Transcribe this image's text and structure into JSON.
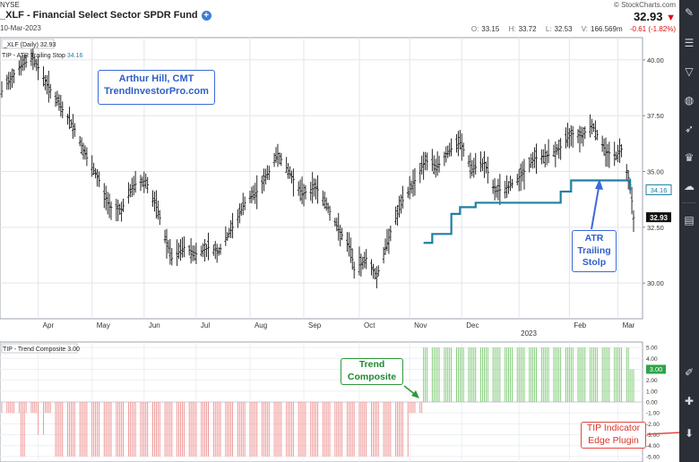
{
  "header": {
    "exchange": "NYSE",
    "title": "_XLF - Financial Select Sector SPDR Fund",
    "date": "10-Mar-2023",
    "copyright": "© StockCharts.com",
    "last_price": "32.93",
    "ohlc": {
      "open_label": "O:",
      "open": "33.15",
      "high_label": "H:",
      "high": "33.72",
      "low_label": "L:",
      "low": "32.53",
      "volume_label": "V:",
      "volume": "166.569m",
      "change": "-0.61 (-1.82%)"
    }
  },
  "price_panel": {
    "legend_symbol": "_XLF (Daily) 32.93",
    "legend_indicator": "TIP - ATR Trailing Stop",
    "legend_indicator_value": "34.16",
    "last_tag": "32.93",
    "stop_tag": "34.16"
  },
  "indicator_panel": {
    "legend": "TIP - Trend Composite 3.00",
    "last_tag": "3.00"
  },
  "callouts": {
    "author_line1": "Arthur Hill, CMT",
    "author_line2": "TrendInvestorPro.com",
    "atr_line1": "ATR",
    "atr_line2": "Trailing",
    "atr_line3": "Stolp",
    "trend_line1": "Trend",
    "trend_line2": "Composite",
    "tip_line1": "TIP Indicator",
    "tip_line2": "Edge Plugin"
  },
  "colors": {
    "positive_bar": "#7cc873",
    "negative_bar": "#ef8f8f",
    "stop_line": "#1f7fa3",
    "price_bar": "#111111",
    "author_callout": "#3b6bd6",
    "trend_callout": "#2e9a3a",
    "tip_callout": "#e04a3f"
  },
  "sidebar_icons": [
    "edit-icon",
    "sliders-icon",
    "filter-icon",
    "globe-icon",
    "rocket-icon",
    "trophy-icon",
    "cloud-icon",
    "document-icon",
    "pencil-ruler-icon",
    "puzzle-icon",
    "download-icon"
  ],
  "chart_data": [
    {
      "type": "ohlc",
      "title": "_XLF - Financial Select Sector SPDR Fund",
      "x_tick_labels": [
        "Apr",
        "May",
        "Jun",
        "Jul",
        "Aug",
        "Sep",
        "Oct",
        "Nov",
        "Dec",
        "2023",
        "Feb",
        "Mar"
      ],
      "y_ticks": [
        30.0,
        32.5,
        35.0,
        37.5,
        40.0
      ],
      "y_tick_labels": [
        "30.00",
        "32.50",
        "35.00",
        "37.50",
        "40.00"
      ],
      "ylim": [
        28.4,
        41.0
      ],
      "grid": true,
      "price_path": [
        [
          "2022-03-11",
          38.6
        ],
        [
          "2022-03-21",
          39.7
        ],
        [
          "2022-03-29",
          40.1
        ],
        [
          "2022-04-06",
          38.9
        ],
        [
          "2022-04-14",
          37.9
        ],
        [
          "2022-04-22",
          36.9
        ],
        [
          "2022-04-29",
          35.6
        ],
        [
          "2022-05-06",
          34.6
        ],
        [
          "2022-05-12",
          33.4
        ],
        [
          "2022-05-19",
          33.3
        ],
        [
          "2022-05-26",
          34.4
        ],
        [
          "2022-06-02",
          34.6
        ],
        [
          "2022-06-09",
          33.2
        ],
        [
          "2022-06-14",
          31.8
        ],
        [
          "2022-06-17",
          31.1
        ],
        [
          "2022-06-24",
          31.6
        ],
        [
          "2022-07-01",
          31.3
        ],
        [
          "2022-07-08",
          31.6
        ],
        [
          "2022-07-14",
          31.4
        ],
        [
          "2022-07-22",
          32.5
        ],
        [
          "2022-07-29",
          33.6
        ],
        [
          "2022-08-05",
          34.1
        ],
        [
          "2022-08-12",
          35.0
        ],
        [
          "2022-08-17",
          35.8
        ],
        [
          "2022-08-24",
          34.9
        ],
        [
          "2022-08-31",
          34.0
        ],
        [
          "2022-09-08",
          34.3
        ],
        [
          "2022-09-13",
          33.7
        ],
        [
          "2022-09-21",
          32.4
        ],
        [
          "2022-09-28",
          31.5
        ],
        [
          "2022-09-30",
          30.6
        ],
        [
          "2022-10-07",
          31.1
        ],
        [
          "2022-10-13",
          30.3
        ],
        [
          "2022-10-21",
          32.3
        ],
        [
          "2022-10-28",
          33.7
        ],
        [
          "2022-11-04",
          34.6
        ],
        [
          "2022-11-10",
          35.5
        ],
        [
          "2022-11-17",
          35.2
        ],
        [
          "2022-11-23",
          35.9
        ],
        [
          "2022-11-30",
          36.3
        ],
        [
          "2022-12-07",
          35.1
        ],
        [
          "2022-12-14",
          35.4
        ],
        [
          "2022-12-20",
          34.1
        ],
        [
          "2022-12-28",
          34.3
        ],
        [
          "2023-01-05",
          34.9
        ],
        [
          "2023-01-12",
          35.6
        ],
        [
          "2023-01-19",
          35.7
        ],
        [
          "2023-01-26",
          36.0
        ],
        [
          "2023-02-02",
          36.7
        ],
        [
          "2023-02-08",
          36.6
        ],
        [
          "2023-02-14",
          37.1
        ],
        [
          "2023-02-22",
          35.9
        ],
        [
          "2023-02-28",
          35.7
        ],
        [
          "2023-03-03",
          36.0
        ],
        [
          "2023-03-08",
          34.4
        ],
        [
          "2023-03-10",
          32.93
        ]
      ],
      "series": [
        {
          "name": "TIP - ATR Trailing Stop",
          "steps": [
            [
              "2022-11-09",
              31.8
            ],
            [
              "2022-11-14",
              32.2
            ],
            [
              "2022-11-25",
              33.1
            ],
            [
              "2022-11-30",
              33.4
            ],
            [
              "2022-12-09",
              33.6
            ],
            [
              "2023-01-27",
              34.1
            ],
            [
              "2023-02-02",
              34.6
            ],
            [
              "2023-03-08",
              34.16
            ]
          ]
        }
      ]
    },
    {
      "type": "bar",
      "title": "TIP - Trend Composite 3.00",
      "y_ticks": [
        -5,
        -4,
        -3,
        -2,
        -1,
        0,
        1,
        2,
        3,
        4,
        5
      ],
      "y_tick_labels": [
        "-5.00",
        "-4.00",
        "-3.00",
        "-2.00",
        "-1.00",
        "0.00",
        "1.00",
        "2.00",
        "3.00",
        "4.00",
        "5.00"
      ],
      "ylim": [
        -5.5,
        5.5
      ],
      "segments": [
        {
          "start": "2022-03-11",
          "end": "2022-03-21",
          "value": -1
        },
        {
          "start": "2022-03-22",
          "end": "2022-03-24",
          "value": -5
        },
        {
          "start": "2022-03-25",
          "end": "2022-03-31",
          "value": -1
        },
        {
          "start": "2022-04-01",
          "end": "2022-04-04",
          "value": -3
        },
        {
          "start": "2022-04-05",
          "end": "2022-04-08",
          "value": -1
        },
        {
          "start": "2022-04-11",
          "end": "2022-10-31",
          "value": -5
        },
        {
          "start": "2022-11-01",
          "end": "2022-11-08",
          "value": -1
        },
        {
          "start": "2022-11-09",
          "end": "2023-03-07",
          "value": 5
        },
        {
          "start": "2023-03-08",
          "end": "2023-03-10",
          "value": 3
        }
      ]
    }
  ]
}
